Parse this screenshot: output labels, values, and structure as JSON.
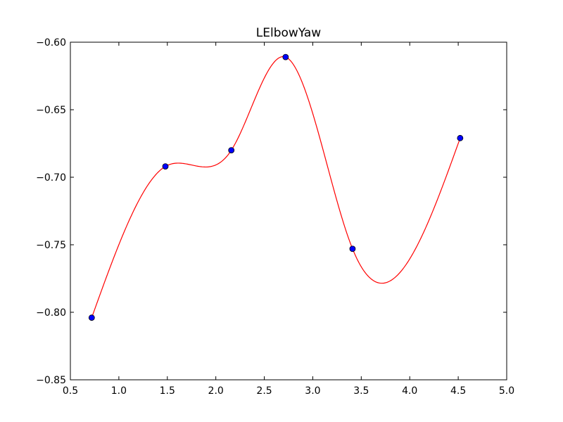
{
  "chart_data": {
    "type": "line",
    "title": "LElbowYaw",
    "xlabel": "",
    "ylabel": "",
    "xlim": [
      0.5,
      5.0
    ],
    "ylim": [
      -0.85,
      -0.6
    ],
    "xticks": [
      0.5,
      1.0,
      1.5,
      2.0,
      2.5,
      3.0,
      3.5,
      4.0,
      4.5,
      5.0
    ],
    "xtick_labels": [
      "0.5",
      "1.0",
      "1.5",
      "2.0",
      "2.5",
      "3.0",
      "3.5",
      "4.0",
      "4.5",
      "5.0"
    ],
    "yticks": [
      -0.85,
      -0.8,
      -0.75,
      -0.7,
      -0.65,
      -0.6
    ],
    "ytick_labels": [
      "−0.85",
      "−0.80",
      "−0.75",
      "−0.70",
      "−0.65",
      "−0.60"
    ],
    "grid": false,
    "series": [
      {
        "style": "markers",
        "color": "#0000ff",
        "marker": "circle",
        "x": [
          0.72,
          1.48,
          2.16,
          2.72,
          3.41,
          4.52
        ],
        "y": [
          -0.804,
          -0.692,
          -0.68,
          -0.611,
          -0.753,
          -0.671
        ]
      },
      {
        "style": "smooth-curve",
        "color": "#ff0000",
        "x": [
          0.72,
          1.48,
          2.16,
          2.72,
          3.41,
          4.52
        ],
        "y": [
          -0.804,
          -0.692,
          -0.68,
          -0.611,
          -0.753,
          -0.671
        ]
      }
    ]
  }
}
